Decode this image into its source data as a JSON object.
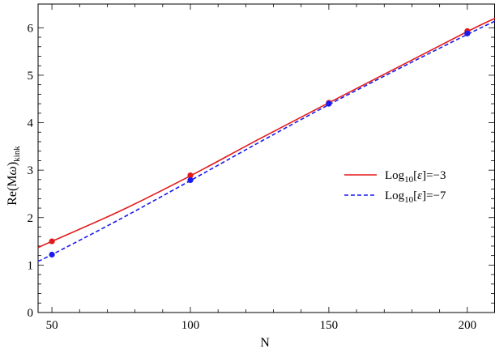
{
  "chart_data": {
    "type": "line",
    "title": "",
    "xlabel": "N",
    "ylabel": {
      "base": "Re(M",
      "omega": "ω",
      "close": ")",
      "subscript": "kink"
    },
    "xlim": [
      45,
      210
    ],
    "ylim": [
      0,
      6.5
    ],
    "xticks": [
      50,
      100,
      150,
      200
    ],
    "yticks": [
      0,
      1,
      2,
      3,
      4,
      5,
      6
    ],
    "grid": false,
    "legend_position": "center-right",
    "series": [
      {
        "name": "Log10[ε]=−3",
        "legend": {
          "prefix": "Log",
          "sub": "10",
          "mid": "[",
          "eps": "ε",
          "suffix": "]=−3"
        },
        "color": "#e31a1c",
        "dash": "solid",
        "curve": {
          "x": [
            45,
            50,
            75,
            100,
            125,
            150,
            175,
            200,
            210
          ],
          "y": [
            1.37,
            1.5,
            2.15,
            2.88,
            3.66,
            4.42,
            5.17,
            5.92,
            6.2
          ]
        },
        "points": {
          "x": [
            50,
            100,
            150,
            200
          ],
          "y": [
            1.5,
            2.89,
            4.42,
            5.93
          ]
        }
      },
      {
        "name": "Log10[ε]=−7",
        "legend": {
          "prefix": "Log",
          "sub": "10",
          "mid": "[",
          "eps": "ε",
          "suffix": "]=−7"
        },
        "color": "#1a1aee",
        "dash": "dashed",
        "curve": {
          "x": [
            45,
            50,
            75,
            100,
            125,
            150,
            175,
            200,
            210
          ],
          "y": [
            1.08,
            1.22,
            1.98,
            2.78,
            3.59,
            4.38,
            5.13,
            5.86,
            6.14
          ]
        },
        "points": {
          "x": [
            50,
            100,
            150,
            200
          ],
          "y": [
            1.22,
            2.79,
            4.4,
            5.88
          ]
        }
      }
    ]
  }
}
